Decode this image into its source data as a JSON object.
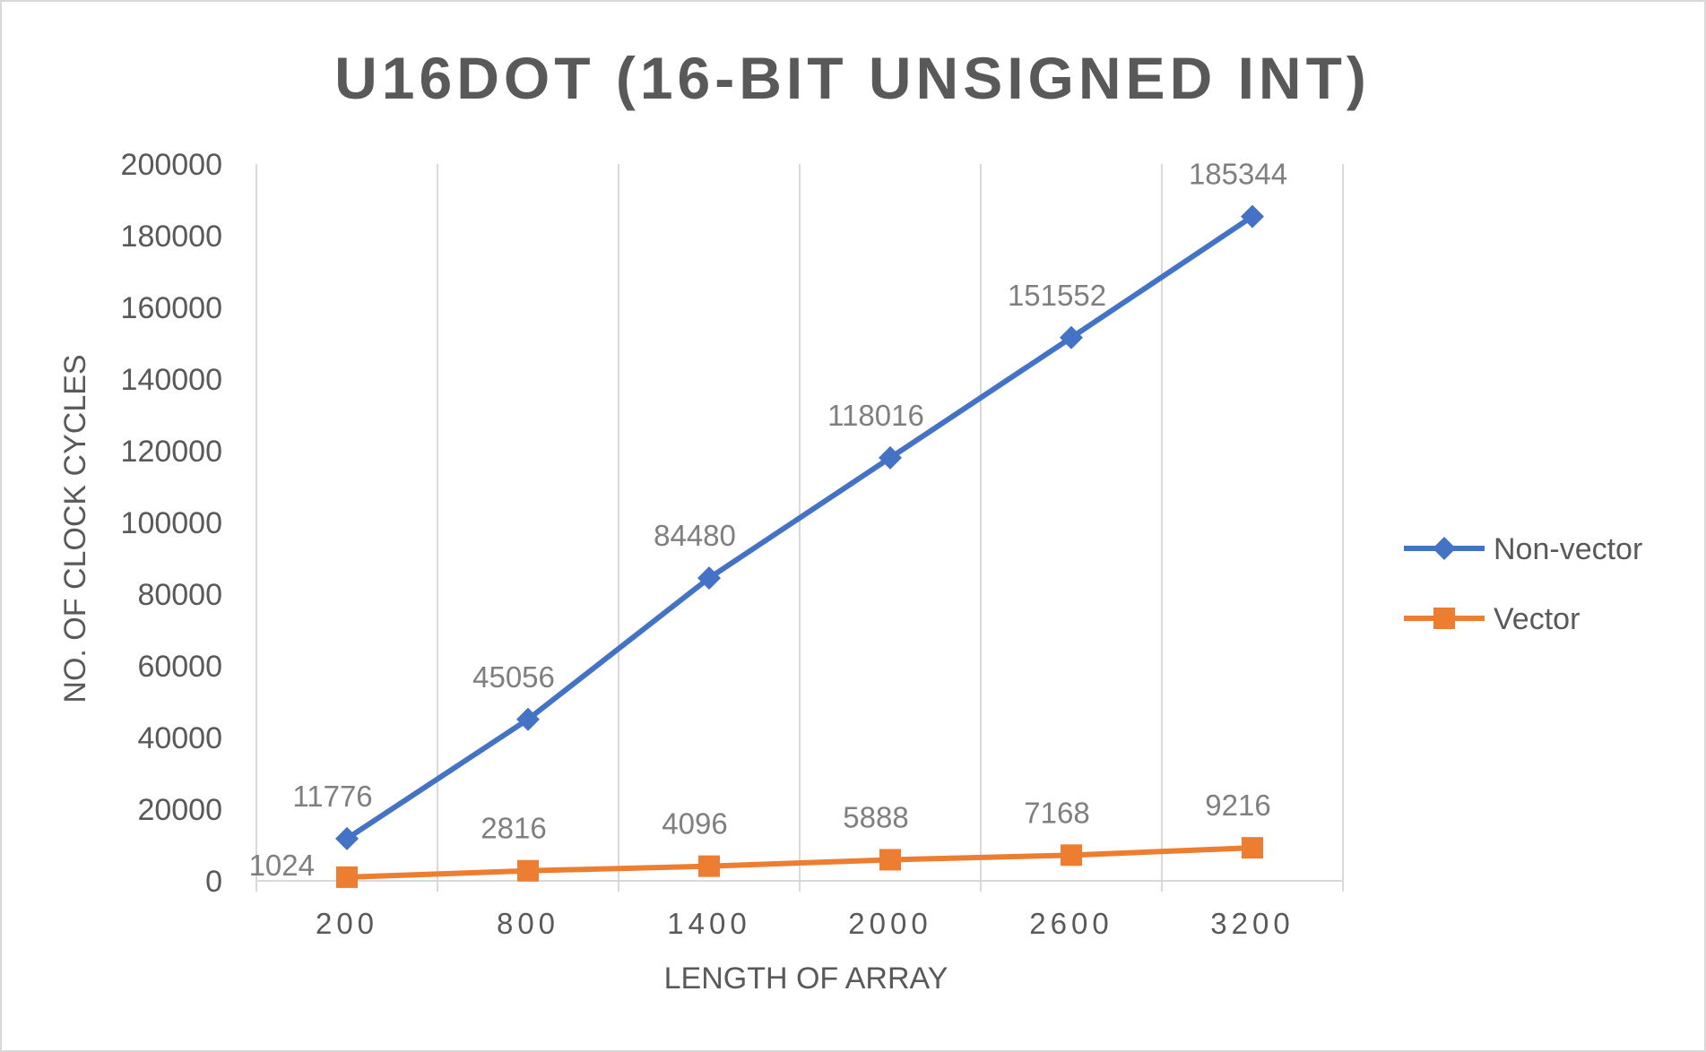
{
  "chart_data": {
    "type": "line",
    "title": "U16DOT (16-BIT UNSIGNED INT)",
    "xlabel": "LENGTH OF ARRAY",
    "ylabel": "NO. OF CLOCK CYCLES",
    "categories": [
      "200",
      "800",
      "1400",
      "2000",
      "2600",
      "3200"
    ],
    "ylim": [
      0,
      200000
    ],
    "yticks": [
      "0",
      "20000",
      "40000",
      "60000",
      "80000",
      "100000",
      "120000",
      "140000",
      "160000",
      "180000",
      "200000"
    ],
    "grid": "vertical",
    "legend_position": "right",
    "series": [
      {
        "name": "Non-vector",
        "color": "#4472C4",
        "marker": "diamond",
        "values": [
          11776,
          45056,
          84480,
          118016,
          151552,
          185344
        ],
        "labels": [
          "11776",
          "45056",
          "84480",
          "118016",
          "151552",
          "185344"
        ]
      },
      {
        "name": "Vector",
        "color": "#ED7D31",
        "marker": "square",
        "values": [
          1024,
          2816,
          4096,
          5888,
          7168,
          9216
        ],
        "labels": [
          "1024",
          "2816",
          "4096",
          "5888",
          "7168",
          "9216"
        ]
      }
    ]
  }
}
